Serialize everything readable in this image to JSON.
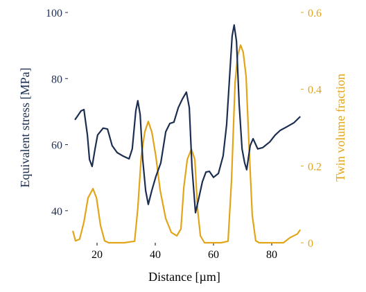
{
  "chart_data": {
    "type": "line",
    "xlabel": "Distance [µm]",
    "ylabel": "Equivalent stress [MPa]",
    "y2label": "Twin volume fraction",
    "xlim": [
      10,
      90
    ],
    "xticks": [
      20,
      40,
      60,
      80
    ],
    "ylim": [
      30.3,
      100
    ],
    "yticks": [
      40,
      60,
      80,
      100
    ],
    "y2lim": [
      0,
      0.6
    ],
    "y2ticks": [
      0,
      0.2,
      0.4,
      0.6
    ],
    "series": [
      {
        "color": "#1b2d50",
        "x": [
          12.4,
          14.5,
          15.5,
          16.7,
          17.4,
          18.3,
          19.3,
          20.2,
          22.1,
          23.6,
          25.2,
          26.9,
          28.8,
          31,
          32.1,
          33.3,
          34,
          34.8,
          35.7,
          36.7,
          37.6,
          38.8,
          40.2,
          41.9,
          43.6,
          45,
          46.4,
          47.9,
          49.3,
          50.7,
          51.7,
          52.6,
          53.8,
          55,
          56.2,
          57.4,
          58.6,
          60,
          61.7,
          63.3,
          64.5,
          65.7,
          66.4,
          67.1,
          67.9,
          68.8,
          69.8,
          70.7,
          71.4,
          72.6,
          73.6,
          75.2,
          76.9,
          79.3,
          81.2,
          82.9,
          85.2,
          87.6,
          89.8
        ],
        "values": [
          67.5,
          70.2,
          70.6,
          62.9,
          55.5,
          53.4,
          58.7,
          62.9,
          65,
          64.7,
          59.7,
          57.6,
          56.6,
          55.7,
          58.7,
          70.2,
          73.3,
          69.1,
          55.5,
          46.1,
          41.9,
          46.1,
          50.3,
          54.5,
          63.9,
          66.4,
          66.8,
          71.2,
          73.8,
          75.9,
          71.2,
          53.4,
          39.4,
          44,
          48.8,
          51.7,
          51.9,
          50.1,
          51.3,
          56.6,
          66,
          82.8,
          92.9,
          96.2,
          91.2,
          72.3,
          58.7,
          54.5,
          52.4,
          59.7,
          61.8,
          58.7,
          59.1,
          60.8,
          62.9,
          64.3,
          65.4,
          66.6,
          68.5
        ]
      },
      {
        "color": "#e2a419",
        "axis": "y2",
        "x": [
          11.7,
          12.6,
          14,
          15.5,
          16.9,
          18.6,
          19.8,
          21.2,
          22.6,
          24,
          29.3,
          32.9,
          34,
          35.2,
          36.4,
          37.6,
          38.8,
          40.2,
          41.7,
          43.6,
          45.5,
          47.4,
          48.8,
          49.8,
          51,
          52.4,
          53.6,
          54.5,
          55.5,
          56.9,
          62.6,
          65,
          66.2,
          67.4,
          68.3,
          69.3,
          70.2,
          71.2,
          72.1,
          73.3,
          74.5,
          75.7,
          84,
          86.4,
          88.8,
          89.8
        ],
        "values": [
          0.031,
          0.005,
          0.009,
          0.054,
          0.117,
          0.141,
          0.117,
          0.045,
          0.005,
          0,
          0,
          0.004,
          0.09,
          0.226,
          0.289,
          0.316,
          0.289,
          0.226,
          0.136,
          0.063,
          0.027,
          0.018,
          0.036,
          0.145,
          0.217,
          0.244,
          0.217,
          0.09,
          0.018,
          0,
          0,
          0.004,
          0.163,
          0.416,
          0.488,
          0.515,
          0.497,
          0.434,
          0.271,
          0.072,
          0.005,
          0,
          0,
          0.014,
          0.023,
          0.034
        ]
      }
    ]
  }
}
